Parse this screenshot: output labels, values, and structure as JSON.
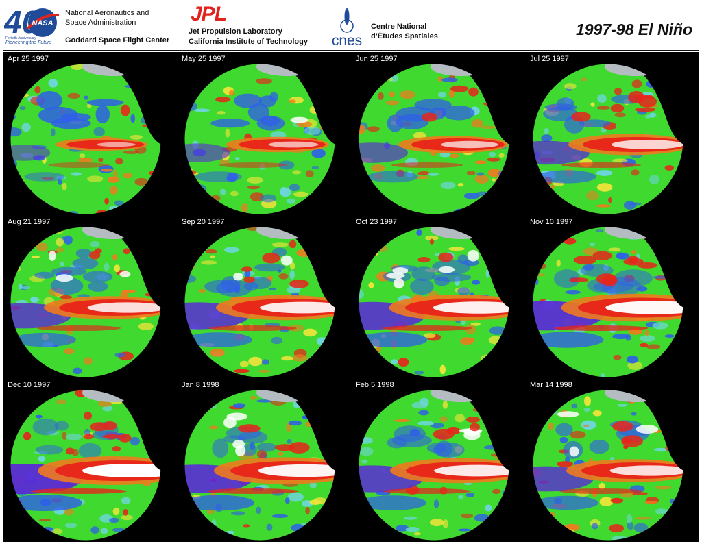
{
  "header": {
    "nasa": {
      "logo_number": "40",
      "logo_word": "NASA",
      "anniversary": "Fortieth Anniversary",
      "tagline": "Pioneering the Future",
      "name_line1": "National Aeronautics and",
      "name_line2": "Space Administration",
      "center": "Goddard Space Flight Center"
    },
    "jpl": {
      "logo": "JPL",
      "name_line1": "Jet Propulsion Laboratory",
      "name_line2": "California Institute of Technology"
    },
    "cnes": {
      "logo": "cnes",
      "name_line1": "Centre National",
      "name_line2": "d’Études Spatiales"
    },
    "title": "1997-98 El Niño"
  },
  "colors": {
    "ocean_base": "#3fd92f",
    "cool_strong": "#5a2bd6",
    "cool": "#2f5fe8",
    "cool_light": "#6fd6e0",
    "warm_light": "#f4e43a",
    "warm": "#f07a1e",
    "warm_strong": "#e8241a",
    "peak": "#ffffff",
    "land": "#000000",
    "ice": "#b4bcc2",
    "nasa_blue": "#1f4b99",
    "jpl_red": "#e0231c"
  },
  "panels": [
    {
      "date": "Apr 25 1997",
      "intensity": 0.15
    },
    {
      "date": "May 25 1997",
      "intensity": 0.3
    },
    {
      "date": "Jun 25 1997",
      "intensity": 0.4
    },
    {
      "date": "Jul 25 1997",
      "intensity": 0.6
    },
    {
      "date": "Aug 21 1997",
      "intensity": 0.7
    },
    {
      "date": "Sep 20 1997",
      "intensity": 0.8
    },
    {
      "date": "Oct 23 1997",
      "intensity": 0.85
    },
    {
      "date": "Nov 10 1997",
      "intensity": 0.95
    },
    {
      "date": "Dec 10 1997",
      "intensity": 1.0
    },
    {
      "date": "Jan 8 1998",
      "intensity": 0.9
    },
    {
      "date": "Feb 5 1998",
      "intensity": 0.8
    },
    {
      "date": "Mar 14 1998",
      "intensity": 0.7
    }
  ]
}
